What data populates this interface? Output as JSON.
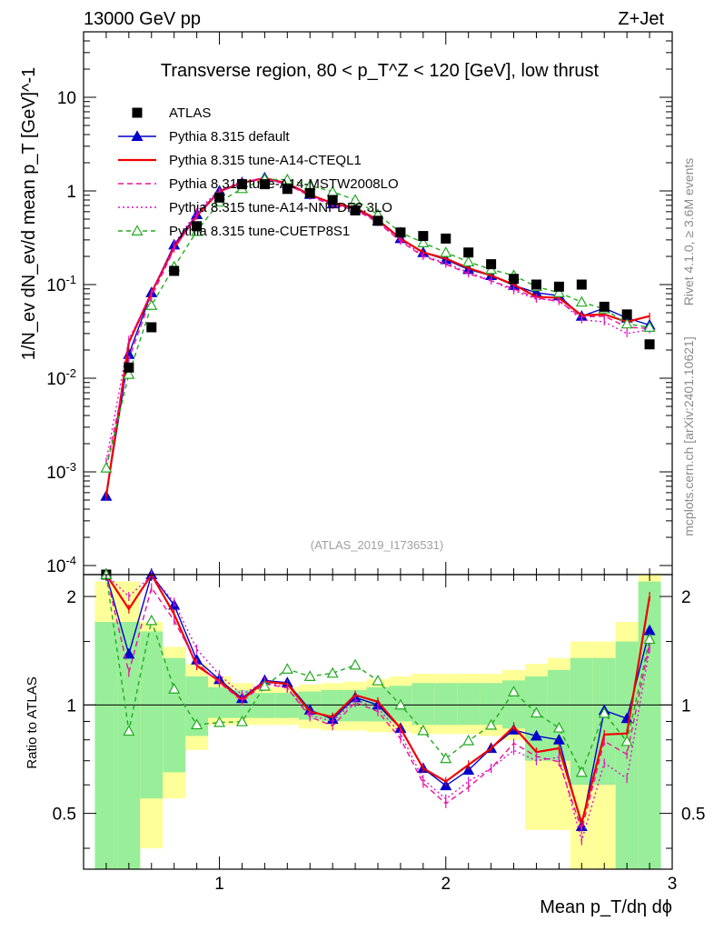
{
  "header": {
    "energy": "13000 GeV pp",
    "process": "Z+Jet",
    "rivet": "Rivet 4.1.0, ≥ 3.6M events",
    "source": "mcplots.cern.ch [arXiv:2401.10621]",
    "analysis": "(ATLAS_2019_I1736531)"
  },
  "chart_data": {
    "type": "line",
    "title": "Transverse region, 80 < p_T^Z < 120 [GeV], low thrust",
    "xlabel": "Mean p_T/dη dϕ",
    "ylabel": "1/N_ev dN_ev/d mean p_T [GeV]^-1",
    "ratio_ylabel": "Ratio to ATLAS",
    "xlim": [
      0.4,
      3.0
    ],
    "ylim": [
      8e-05,
      50
    ],
    "ratio_ylim": [
      0.35,
      2.3
    ],
    "yscale": "log",
    "ratio_yscale": "log",
    "x_ticks": [
      "1",
      "2",
      "3"
    ],
    "y_ticks": [
      "10^-4",
      "10^-3",
      "10^-2",
      "10^-1",
      "1",
      "10"
    ],
    "ratio_ticks": [
      "0.5",
      "1",
      "2"
    ],
    "x": [
      0.5,
      0.6,
      0.7,
      0.8,
      0.9,
      1.0,
      1.1,
      1.2,
      1.3,
      1.4,
      1.5,
      1.6,
      1.7,
      1.8,
      1.9,
      2.0,
      2.1,
      2.2,
      2.3,
      2.4,
      2.5,
      2.6,
      2.7,
      2.8,
      2.9
    ],
    "data": {
      "name": "ATLAS",
      "values": [
        8e-05,
        0.013,
        0.035,
        0.14,
        0.42,
        0.85,
        1.18,
        1.18,
        1.05,
        0.95,
        0.8,
        0.62,
        0.48,
        0.36,
        0.33,
        0.31,
        0.22,
        0.165,
        0.115,
        0.1,
        0.095,
        0.1,
        0.058,
        0.048,
        0.023
      ]
    },
    "series": [
      {
        "name": "Pythia 8.315 default",
        "color": "#0000cc",
        "dash": "solid",
        "marker": "triangle-filled",
        "values": [
          0.00055,
          0.018,
          0.082,
          0.265,
          0.56,
          1.0,
          1.23,
          1.38,
          1.21,
          0.92,
          0.73,
          0.65,
          0.48,
          0.31,
          0.22,
          0.185,
          0.145,
          0.125,
          0.098,
          0.082,
          0.076,
          0.046,
          0.056,
          0.044,
          0.037
        ]
      },
      {
        "name": "Pythia 8.315 tune-A14-CTEQL1",
        "color": "#ee0000",
        "dash": "solid",
        "marker": "none",
        "values": [
          0.00055,
          0.024,
          0.082,
          0.25,
          0.54,
          0.99,
          1.22,
          1.37,
          1.2,
          0.91,
          0.74,
          0.66,
          0.49,
          0.31,
          0.22,
          0.19,
          0.15,
          0.125,
          0.1,
          0.074,
          0.072,
          0.047,
          0.048,
          0.04,
          0.046
        ]
      },
      {
        "name": "Pythia 8.315 tune-A14-MSTW2008LO",
        "color": "#ee1199",
        "dash": "6,4",
        "marker": "none",
        "values": [
          0.0011,
          0.016,
          0.074,
          0.24,
          0.55,
          0.98,
          1.21,
          1.35,
          1.17,
          0.88,
          0.7,
          0.63,
          0.46,
          0.29,
          0.2,
          0.165,
          0.13,
          0.11,
          0.09,
          0.072,
          0.066,
          0.045,
          0.046,
          0.035,
          0.034
        ]
      },
      {
        "name": "Pythia 8.315 tune-A14-NNPDF2.3LO",
        "color": "#dd11cc",
        "dash": "2,3",
        "marker": "none",
        "values": [
          0.0013,
          0.026,
          0.08,
          0.27,
          0.6,
          1.03,
          1.26,
          1.37,
          1.17,
          0.89,
          0.72,
          0.64,
          0.47,
          0.3,
          0.205,
          0.17,
          0.135,
          0.11,
          0.086,
          0.07,
          0.068,
          0.042,
          0.04,
          0.03,
          0.033
        ]
      },
      {
        "name": "Pythia 8.315 tune-CUETP8S1",
        "color": "#22aa22",
        "dash": "5,4",
        "marker": "triangle-open",
        "values": [
          0.0011,
          0.011,
          0.06,
          0.155,
          0.37,
          0.76,
          1.06,
          1.33,
          1.32,
          1.14,
          0.98,
          0.8,
          0.56,
          0.36,
          0.28,
          0.22,
          0.175,
          0.145,
          0.125,
          0.095,
          0.082,
          0.065,
          0.055,
          0.038,
          0.035
        ]
      }
    ],
    "ratio_bands": [
      {
        "x0": 0.45,
        "x1": 0.55,
        "yellow": [
          0.35,
          2.2
        ],
        "green": [
          0.35,
          1.7
        ]
      },
      {
        "x0": 0.55,
        "x1": 0.65,
        "yellow": [
          0.35,
          2.2
        ],
        "green": [
          0.35,
          1.7
        ]
      },
      {
        "x0": 0.65,
        "x1": 0.75,
        "yellow": [
          0.4,
          1.7
        ],
        "green": [
          0.55,
          1.6
        ]
      },
      {
        "x0": 0.75,
        "x1": 0.85,
        "yellow": [
          0.55,
          1.45
        ],
        "green": [
          0.65,
          1.35
        ]
      },
      {
        "x0": 0.85,
        "x1": 0.95,
        "yellow": [
          0.75,
          1.3
        ],
        "green": [
          0.82,
          1.2
        ]
      },
      {
        "x0": 0.95,
        "x1": 1.05,
        "yellow": [
          0.88,
          1.2
        ],
        "green": [
          0.92,
          1.12
        ]
      },
      {
        "x0": 1.05,
        "x1": 1.15,
        "yellow": [
          0.88,
          1.15
        ],
        "green": [
          0.92,
          1.1
        ]
      },
      {
        "x0": 1.15,
        "x1": 1.25,
        "yellow": [
          0.88,
          1.12
        ],
        "green": [
          0.92,
          1.08
        ]
      },
      {
        "x0": 1.25,
        "x1": 1.35,
        "yellow": [
          0.88,
          1.12
        ],
        "green": [
          0.92,
          1.08
        ]
      },
      {
        "x0": 1.35,
        "x1": 1.45,
        "yellow": [
          0.86,
          1.14
        ],
        "green": [
          0.91,
          1.09
        ]
      },
      {
        "x0": 1.45,
        "x1": 1.55,
        "yellow": [
          0.85,
          1.15
        ],
        "green": [
          0.9,
          1.1
        ]
      },
      {
        "x0": 1.55,
        "x1": 1.65,
        "yellow": [
          0.85,
          1.16
        ],
        "green": [
          0.9,
          1.1
        ]
      },
      {
        "x0": 1.65,
        "x1": 1.75,
        "yellow": [
          0.84,
          1.18
        ],
        "green": [
          0.9,
          1.12
        ]
      },
      {
        "x0": 1.75,
        "x1": 1.85,
        "yellow": [
          0.84,
          1.2
        ],
        "green": [
          0.9,
          1.13
        ]
      },
      {
        "x0": 1.85,
        "x1": 1.95,
        "yellow": [
          0.83,
          1.22
        ],
        "green": [
          0.88,
          1.15
        ]
      },
      {
        "x0": 1.95,
        "x1": 2.05,
        "yellow": [
          0.83,
          1.22
        ],
        "green": [
          0.88,
          1.15
        ]
      },
      {
        "x0": 2.05,
        "x1": 2.15,
        "yellow": [
          0.83,
          1.22
        ],
        "green": [
          0.88,
          1.15
        ]
      },
      {
        "x0": 2.15,
        "x1": 2.25,
        "yellow": [
          0.82,
          1.22
        ],
        "green": [
          0.88,
          1.15
        ]
      },
      {
        "x0": 2.25,
        "x1": 2.35,
        "yellow": [
          0.8,
          1.25
        ],
        "green": [
          0.86,
          1.17
        ]
      },
      {
        "x0": 2.35,
        "x1": 2.45,
        "yellow": [
          0.45,
          1.3
        ],
        "green": [
          0.7,
          1.2
        ]
      },
      {
        "x0": 2.45,
        "x1": 2.55,
        "yellow": [
          0.45,
          1.35
        ],
        "green": [
          0.7,
          1.25
        ]
      },
      {
        "x0": 2.55,
        "x1": 2.65,
        "yellow": [
          0.35,
          1.5
        ],
        "green": [
          0.6,
          1.35
        ]
      },
      {
        "x0": 2.65,
        "x1": 2.75,
        "yellow": [
          0.35,
          1.5
        ],
        "green": [
          0.6,
          1.35
        ]
      },
      {
        "x0": 2.75,
        "x1": 2.85,
        "yellow": [
          0.35,
          1.7
        ],
        "green": [
          0.35,
          1.5
        ]
      },
      {
        "x0": 2.85,
        "x1": 2.95,
        "yellow": [
          0.35,
          2.3
        ],
        "green": [
          0.35,
          2.2
        ]
      }
    ]
  }
}
